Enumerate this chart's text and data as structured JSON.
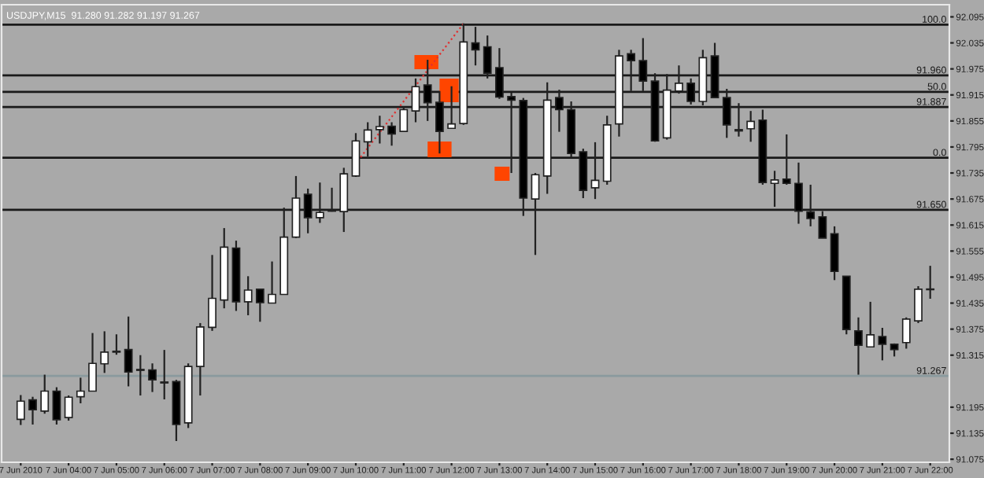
{
  "chart_data": {
    "type": "candlestick",
    "title": "USDJPY,M15  91.280 91.282 91.197 91.267",
    "categories": [
      "7 Jun 2010",
      null,
      null,
      null,
      "7 Jun 04:00",
      null,
      null,
      null,
      "7 Jun 05:00",
      null,
      null,
      null,
      "7 Jun 06:00",
      null,
      null,
      null,
      "7 Jun 07:00",
      null,
      null,
      null,
      "7 Jun 08:00",
      null,
      null,
      null,
      "7 Jun 09:00",
      null,
      null,
      null,
      "7 Jun 10:00",
      null,
      null,
      null,
      "7 Jun 11:00",
      null,
      null,
      null,
      "7 Jun 12:00",
      null,
      null,
      null,
      "7 Jun 13:00",
      null,
      null,
      null,
      "7 Jun 14:00",
      null,
      null,
      null,
      "7 Jun 15:00",
      null,
      null,
      null,
      "7 Jun 16:00",
      null,
      null,
      null,
      "7 Jun 17:00",
      null,
      null,
      null,
      "7 Jun 18:00",
      null,
      null,
      null,
      "7 Jun 19:00",
      null,
      null,
      null,
      "7 Jun 20:00",
      null,
      null,
      null,
      "7 Jun 21:00",
      null,
      null,
      null,
      "7 Jun 22:00"
    ],
    "ohlc": [
      [
        91.167,
        91.223,
        91.154,
        91.209
      ],
      [
        91.212,
        91.219,
        91.155,
        91.189
      ],
      [
        91.186,
        91.27,
        91.18,
        91.232
      ],
      [
        91.232,
        91.241,
        91.155,
        91.166
      ],
      [
        91.171,
        91.222,
        91.164,
        91.218
      ],
      [
        91.219,
        91.263,
        91.204,
        91.232
      ],
      [
        91.232,
        91.366,
        91.232,
        91.296
      ],
      [
        91.295,
        91.37,
        91.274,
        91.322
      ],
      [
        91.324,
        91.363,
        91.316,
        91.322
      ],
      [
        91.328,
        91.404,
        91.243,
        91.276
      ],
      [
        91.282,
        91.315,
        91.222,
        91.28
      ],
      [
        91.281,
        91.296,
        91.23,
        91.258
      ],
      [
        91.253,
        91.327,
        91.213,
        91.251
      ],
      [
        91.254,
        91.258,
        91.117,
        91.155
      ],
      [
        91.159,
        91.296,
        91.147,
        91.289
      ],
      [
        91.289,
        91.389,
        91.222,
        91.38
      ],
      [
        91.379,
        91.546,
        91.371,
        91.446
      ],
      [
        91.442,
        91.608,
        91.423,
        91.564
      ],
      [
        91.562,
        91.579,
        91.417,
        91.438
      ],
      [
        91.438,
        91.497,
        91.407,
        91.465
      ],
      [
        91.467,
        91.467,
        91.392,
        91.436
      ],
      [
        91.435,
        91.531,
        91.435,
        91.455
      ],
      [
        91.455,
        91.655,
        91.455,
        91.587
      ],
      [
        91.587,
        91.728,
        91.585,
        91.677
      ],
      [
        91.686,
        91.699,
        91.596,
        91.632
      ],
      [
        91.632,
        91.713,
        91.62,
        91.644
      ],
      [
        91.648,
        91.701,
        91.646,
        91.647
      ],
      [
        91.646,
        91.747,
        91.599,
        91.733
      ],
      [
        91.728,
        91.827,
        91.726,
        91.809
      ],
      [
        91.807,
        91.852,
        91.773,
        91.834
      ],
      [
        91.835,
        91.867,
        91.803,
        91.842
      ],
      [
        91.843,
        91.852,
        91.798,
        91.825
      ],
      [
        91.831,
        91.888,
        91.83,
        91.881
      ],
      [
        91.878,
        91.953,
        91.852,
        91.934
      ],
      [
        91.938,
        91.996,
        91.855,
        91.897
      ],
      [
        91.898,
        91.924,
        91.78,
        91.831
      ],
      [
        91.838,
        91.935,
        91.837,
        91.848
      ],
      [
        91.849,
        92.08,
        91.846,
        92.037
      ],
      [
        92.035,
        92.072,
        91.983,
        92.019
      ],
      [
        92.026,
        92.052,
        91.953,
        91.965
      ],
      [
        91.978,
        92.023,
        91.906,
        91.91
      ],
      [
        91.911,
        91.92,
        91.735,
        91.903
      ],
      [
        91.902,
        91.908,
        91.636,
        91.677
      ],
      [
        91.675,
        91.735,
        91.546,
        91.731
      ],
      [
        91.728,
        91.944,
        91.687,
        91.903
      ],
      [
        91.909,
        91.927,
        91.83,
        91.881
      ],
      [
        91.881,
        91.9,
        91.771,
        91.78
      ],
      [
        91.784,
        91.791,
        91.677,
        91.695
      ],
      [
        91.701,
        91.806,
        91.675,
        91.718
      ],
      [
        91.716,
        91.867,
        91.708,
        91.846
      ],
      [
        91.848,
        92.019,
        91.819,
        92.005
      ],
      [
        92.01,
        92.019,
        91.924,
        91.994
      ],
      [
        91.994,
        92.046,
        91.924,
        91.947
      ],
      [
        91.947,
        91.965,
        91.807,
        91.809
      ],
      [
        91.816,
        91.963,
        91.812,
        91.926
      ],
      [
        91.924,
        91.983,
        91.918,
        91.942
      ],
      [
        91.942,
        91.953,
        91.893,
        91.9
      ],
      [
        91.9,
        92.019,
        91.891,
        92.001
      ],
      [
        92.005,
        92.035,
        91.909,
        91.909
      ],
      [
        91.909,
        91.929,
        91.816,
        91.846
      ],
      [
        91.835,
        91.896,
        91.819,
        91.832
      ],
      [
        91.837,
        91.878,
        91.807,
        91.854
      ],
      [
        91.857,
        91.881,
        91.708,
        91.713
      ],
      [
        91.711,
        91.74,
        91.657,
        91.719
      ],
      [
        91.721,
        91.824,
        91.708,
        91.711
      ],
      [
        91.711,
        91.759,
        91.618,
        91.647
      ],
      [
        91.645,
        91.708,
        91.612,
        91.63
      ],
      [
        91.634,
        91.647,
        91.585,
        91.585
      ],
      [
        91.595,
        91.612,
        91.488,
        91.508
      ],
      [
        91.497,
        91.497,
        91.363,
        91.374
      ],
      [
        91.371,
        91.402,
        91.27,
        91.338
      ],
      [
        91.334,
        91.438,
        91.334,
        91.362
      ],
      [
        91.358,
        91.378,
        91.303,
        91.34
      ],
      [
        91.34,
        91.342,
        91.312,
        91.328
      ],
      [
        91.344,
        91.402,
        91.33,
        91.398
      ],
      [
        91.394,
        91.474,
        91.389,
        91.467
      ],
      [
        91.467,
        91.521,
        91.445,
        91.466
      ]
    ],
    "ylim": [
      91.068,
      92.123
    ],
    "yticks": [
      92.095,
      92.035,
      91.975,
      91.915,
      91.855,
      91.795,
      91.735,
      91.675,
      91.615,
      91.555,
      91.495,
      91.435,
      91.375,
      91.315,
      91.195,
      91.135,
      91.075
    ],
    "annotations": [
      {
        "text": "100.0",
        "y": 92.077
      },
      {
        "text": "50.0",
        "y": 91.922
      },
      {
        "text": "0.0",
        "y": 91.77
      }
    ],
    "ref_lines": [
      {
        "axis": "y",
        "value": 92.077,
        "color": "#1a1a1a"
      },
      {
        "axis": "y",
        "value": 91.96,
        "label": "91.960",
        "color": "#1a1a1a"
      },
      {
        "axis": "y",
        "value": 91.922,
        "color": "#1a1a1a"
      },
      {
        "axis": "y",
        "value": 91.887,
        "label": "91.887",
        "color": "#1a1a1a"
      },
      {
        "axis": "y",
        "value": 91.77,
        "color": "#1a1a1a"
      },
      {
        "axis": "y",
        "value": 91.65,
        "label": "91.650",
        "color": "#1a1a1a"
      },
      {
        "axis": "y",
        "value": 91.267,
        "label": "91.267",
        "color": "#8a9a9e"
      }
    ],
    "grid": false,
    "legend": false
  }
}
